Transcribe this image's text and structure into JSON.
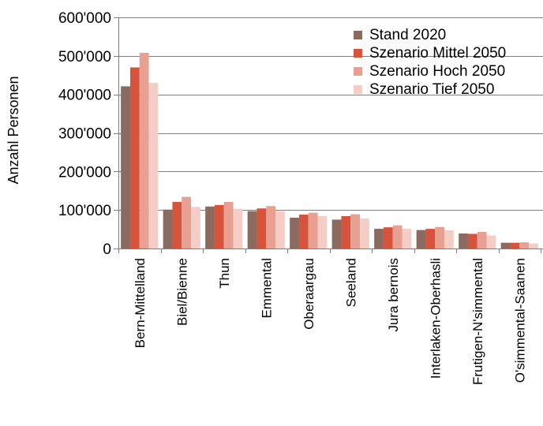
{
  "chart_data": {
    "type": "bar",
    "ylabel": "Anzahl Personen",
    "ylim": [
      0,
      600000
    ],
    "yticks": [
      0,
      100000,
      200000,
      300000,
      400000,
      500000,
      600000
    ],
    "ytick_labels": [
      "0",
      "100'000",
      "200'000",
      "300'000",
      "400'000",
      "500'000",
      "600'000"
    ],
    "grid": true,
    "legend_position": "top-right",
    "categories": [
      "Bern-Mittelland",
      "Biel/Bienne",
      "Thun",
      "Emmental",
      "Oberaargau",
      "Seeland",
      "Jura bernois",
      "Interlaken-Oberhasli",
      "Frutigen-N'simmental",
      "O'simmental-Saanen"
    ],
    "series": [
      {
        "name": "Stand 2020",
        "color": "#8B6A5F",
        "values": [
          421000,
          101000,
          109000,
          97000,
          80000,
          75000,
          51000,
          48000,
          39000,
          15000
        ]
      },
      {
        "name": "Szenario Mittel 2050",
        "color": "#D6533C",
        "values": [
          470000,
          121000,
          113000,
          104000,
          88000,
          84000,
          55000,
          51000,
          38000,
          15000
        ]
      },
      {
        "name": "Szenario Hoch 2050",
        "color": "#E8A093",
        "values": [
          508000,
          134000,
          121000,
          110000,
          93000,
          89000,
          60000,
          56000,
          43000,
          16000
        ]
      },
      {
        "name": "Szenario Tief 2050",
        "color": "#F4CEC6",
        "values": [
          430000,
          108000,
          103000,
          97000,
          84000,
          78000,
          51000,
          47000,
          34000,
          13000
        ]
      }
    ]
  }
}
